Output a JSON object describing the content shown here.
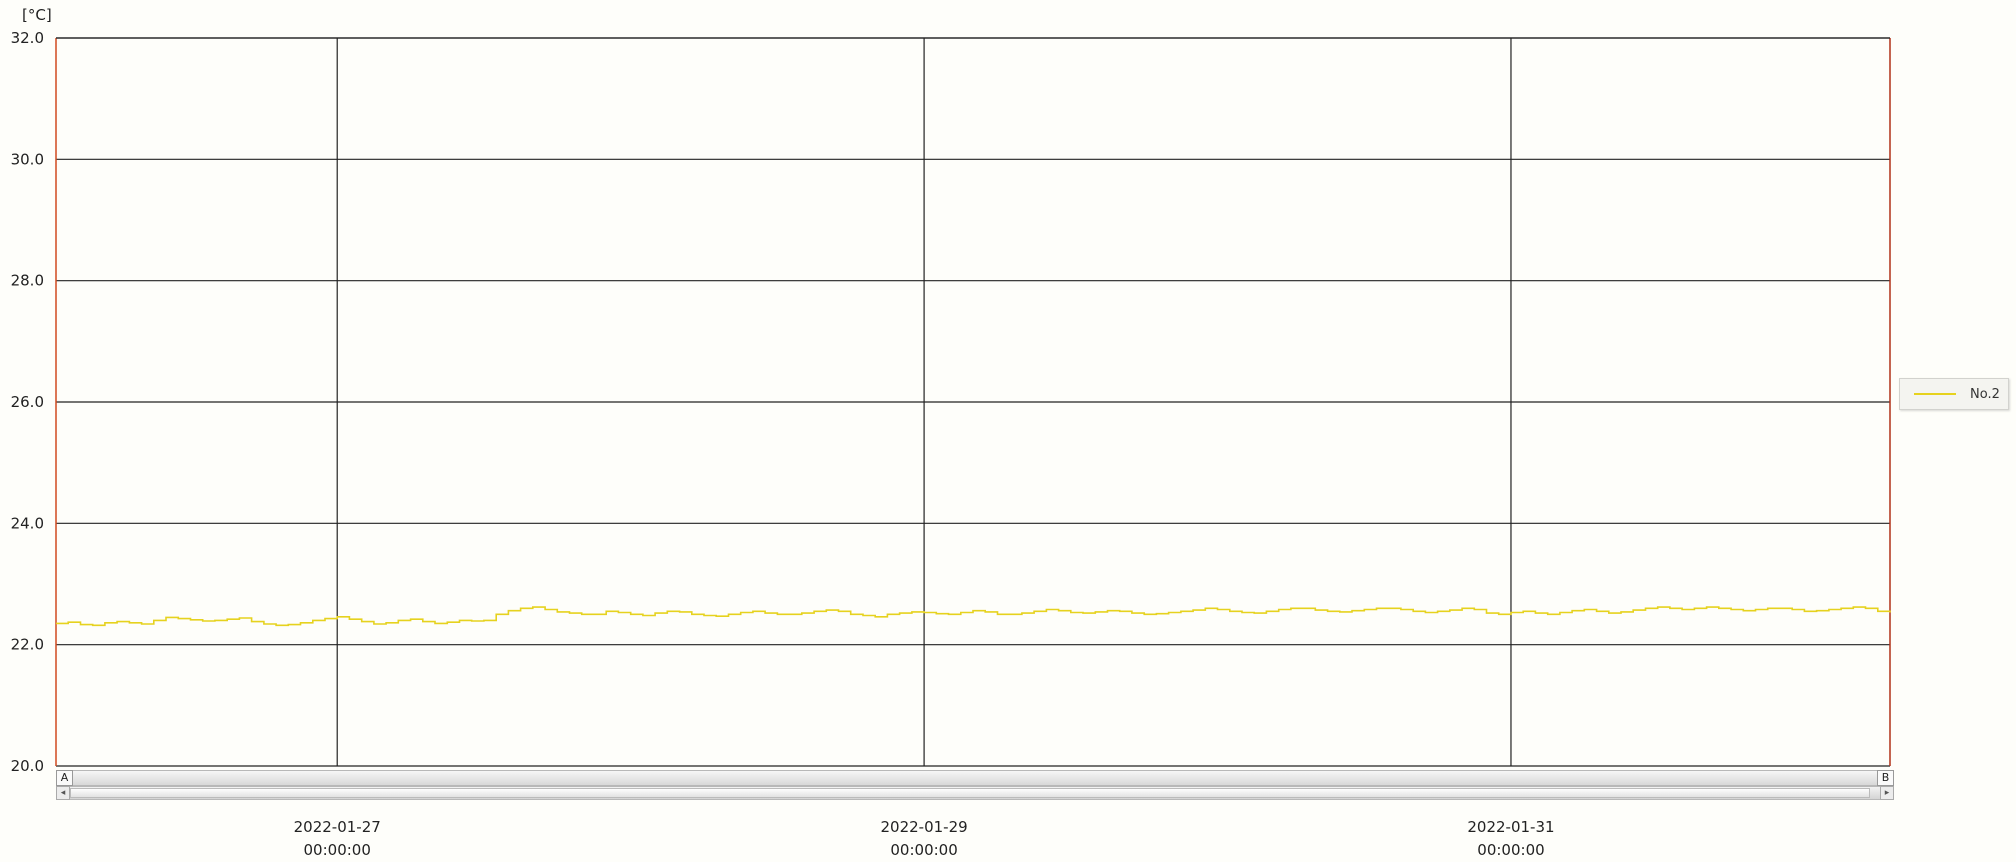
{
  "chart_data": {
    "type": "line",
    "y_unit": "[°C]",
    "ylim": [
      20.0,
      32.0
    ],
    "y_ticks": [
      "20.0",
      "22.0",
      "24.0",
      "26.0",
      "28.0",
      "30.0",
      "32.0"
    ],
    "xlim": [
      "2022-01-26T01:00",
      "2022-02-01T07:00"
    ],
    "x_ticks": [
      {
        "date": "2022-01-27",
        "time": "00:00:00"
      },
      {
        "date": "2022-01-29",
        "time": "00:00:00"
      },
      {
        "date": "2022-01-31",
        "time": "00:00:00"
      }
    ],
    "grid": true,
    "legend_position": "right",
    "series": [
      {
        "name": "No.2",
        "color": "#e6d21e",
        "x_start": "2022-01-26T01:00",
        "x_step_hours": 1,
        "values": [
          22.35,
          22.37,
          22.33,
          22.32,
          22.36,
          22.38,
          22.36,
          22.34,
          22.4,
          22.45,
          22.43,
          22.41,
          22.39,
          22.4,
          22.42,
          22.44,
          22.38,
          22.34,
          22.32,
          22.33,
          22.36,
          22.4,
          22.43,
          22.46,
          22.42,
          22.38,
          22.34,
          22.36,
          22.4,
          22.42,
          22.38,
          22.35,
          22.37,
          22.4,
          22.39,
          22.4,
          22.5,
          22.56,
          22.6,
          22.62,
          22.58,
          22.54,
          22.52,
          22.5,
          22.5,
          22.55,
          22.53,
          22.5,
          22.48,
          22.52,
          22.55,
          22.54,
          22.5,
          22.48,
          22.47,
          22.5,
          22.53,
          22.55,
          22.52,
          22.5,
          22.5,
          22.52,
          22.55,
          22.57,
          22.55,
          22.5,
          22.48,
          22.46,
          22.5,
          22.52,
          22.54,
          22.53,
          22.51,
          22.5,
          22.53,
          22.56,
          22.54,
          22.5,
          22.5,
          22.52,
          22.55,
          22.58,
          22.56,
          22.53,
          22.52,
          22.54,
          22.56,
          22.55,
          22.52,
          22.5,
          22.51,
          22.53,
          22.55,
          22.57,
          22.6,
          22.58,
          22.55,
          22.53,
          22.52,
          22.55,
          22.58,
          22.6,
          22.6,
          22.57,
          22.55,
          22.54,
          22.56,
          22.58,
          22.6,
          22.6,
          22.58,
          22.55,
          22.53,
          22.55,
          22.57,
          22.6,
          22.58,
          22.52,
          22.5,
          22.53,
          22.55,
          22.52,
          22.5,
          22.53,
          22.56,
          22.58,
          22.55,
          22.52,
          22.54,
          22.57,
          22.6,
          22.62,
          22.6,
          22.58,
          22.6,
          22.62,
          22.6,
          22.58,
          22.56,
          22.58,
          22.6,
          22.6,
          22.58,
          22.55,
          22.56,
          22.58,
          22.6,
          22.62,
          22.6,
          22.55,
          22.53
        ]
      }
    ]
  },
  "scrollbar": {
    "marker_a": "A",
    "marker_b": "B",
    "left_arrow": "◂",
    "right_arrow": "▸"
  }
}
